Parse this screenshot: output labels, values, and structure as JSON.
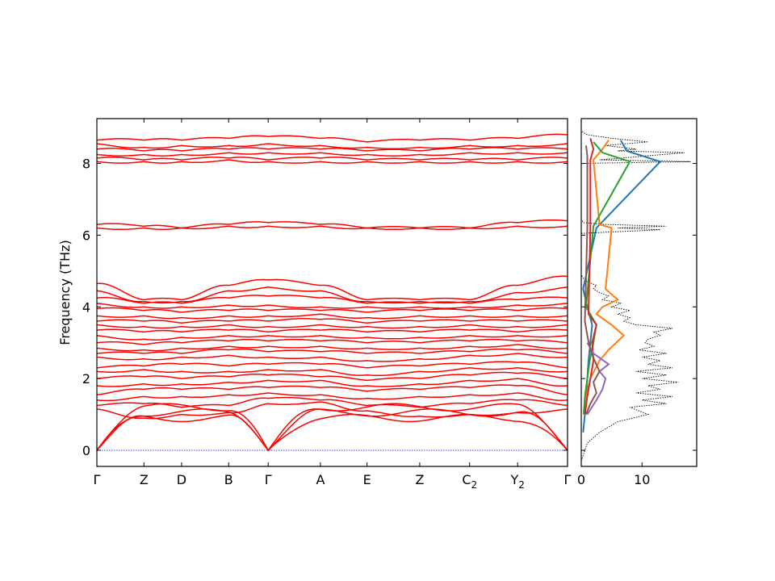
{
  "chart_data": [
    {
      "type": "line",
      "name": "band-structure",
      "ylabel": "Frequency (THz)",
      "ylim": [
        -0.45,
        9.25
      ],
      "y_ticks": [
        "0",
        "2",
        "4",
        "6",
        "8"
      ],
      "path_labels": [
        {
          "base": "Γ",
          "sub": ""
        },
        {
          "base": "Z",
          "sub": ""
        },
        {
          "base": "D",
          "sub": ""
        },
        {
          "base": "B",
          "sub": ""
        },
        {
          "base": "Γ",
          "sub": ""
        },
        {
          "base": "A",
          "sub": ""
        },
        {
          "base": "E",
          "sub": ""
        },
        {
          "base": "Z",
          "sub": ""
        },
        {
          "base": "C",
          "sub": "2"
        },
        {
          "base": "Y",
          "sub": "2"
        },
        {
          "base": "Γ",
          "sub": ""
        }
      ],
      "path_positions": [
        0,
        0.1,
        0.18,
        0.28,
        0.364,
        0.475,
        0.574,
        0.686,
        0.792,
        0.894,
        1.0
      ],
      "band_color": "#ff0000",
      "zero_line_color": "#0000ff",
      "acoustic_branches": 3,
      "optical_bands_at_nodes": [
        [
          1.15,
          0.9,
          1.0,
          1.05,
          1.3,
          1.35,
          1.1,
          0.95,
          1.0,
          1.05,
          1.15
        ],
        [
          1.25,
          1.3,
          1.2,
          1.25,
          1.45,
          1.4,
          1.25,
          1.2,
          1.3,
          1.4,
          1.25
        ],
        [
          1.4,
          1.5,
          1.5,
          1.55,
          1.6,
          1.55,
          1.45,
          1.5,
          1.55,
          1.6,
          1.4
        ],
        [
          1.55,
          1.7,
          1.7,
          1.7,
          1.75,
          1.75,
          1.65,
          1.7,
          1.75,
          1.8,
          1.55
        ],
        [
          1.8,
          1.85,
          1.85,
          1.9,
          1.95,
          1.95,
          1.8,
          1.85,
          1.95,
          2.0,
          1.8
        ],
        [
          2.0,
          2.05,
          2.0,
          2.05,
          2.1,
          2.05,
          1.95,
          2.0,
          2.1,
          2.15,
          2.0
        ],
        [
          2.2,
          2.25,
          2.2,
          2.2,
          2.25,
          2.25,
          2.1,
          2.2,
          2.3,
          2.3,
          2.2
        ],
        [
          2.3,
          2.35,
          2.4,
          2.35,
          2.4,
          2.4,
          2.3,
          2.35,
          2.4,
          2.45,
          2.3
        ],
        [
          2.6,
          2.55,
          2.6,
          2.65,
          2.6,
          2.6,
          2.5,
          2.55,
          2.65,
          2.7,
          2.6
        ],
        [
          2.7,
          2.7,
          2.7,
          2.8,
          2.75,
          2.75,
          2.7,
          2.7,
          2.75,
          2.8,
          2.7
        ],
        [
          2.85,
          2.8,
          2.85,
          2.9,
          2.9,
          2.9,
          2.85,
          2.85,
          2.9,
          2.95,
          2.85
        ],
        [
          3.0,
          2.95,
          3.0,
          3.05,
          3.05,
          3.05,
          3.0,
          3.0,
          3.05,
          3.05,
          3.0
        ],
        [
          3.2,
          3.1,
          3.15,
          3.2,
          3.2,
          3.2,
          3.15,
          3.15,
          3.2,
          3.2,
          3.2
        ],
        [
          3.35,
          3.3,
          3.3,
          3.35,
          3.3,
          3.35,
          3.3,
          3.3,
          3.35,
          3.3,
          3.35
        ],
        [
          3.5,
          3.45,
          3.45,
          3.5,
          3.45,
          3.5,
          3.45,
          3.45,
          3.5,
          3.45,
          3.5
        ],
        [
          3.6,
          3.6,
          3.55,
          3.6,
          3.6,
          3.65,
          3.55,
          3.6,
          3.6,
          3.6,
          3.6
        ],
        [
          3.75,
          3.75,
          3.7,
          3.75,
          3.75,
          3.8,
          3.7,
          3.75,
          3.75,
          3.75,
          3.75
        ],
        [
          3.95,
          3.9,
          3.85,
          3.9,
          3.9,
          3.9,
          3.85,
          3.9,
          3.9,
          3.9,
          3.95
        ],
        [
          4.1,
          4.0,
          4.0,
          4.05,
          4.05,
          4.0,
          4.0,
          4.0,
          4.0,
          4.05,
          4.1
        ],
        [
          4.25,
          4.1,
          4.1,
          4.25,
          4.3,
          4.25,
          4.1,
          4.1,
          4.1,
          4.2,
          4.25
        ],
        [
          4.45,
          4.15,
          4.15,
          4.45,
          4.55,
          4.45,
          4.15,
          4.15,
          4.15,
          4.4,
          4.55
        ],
        [
          4.65,
          4.2,
          4.2,
          4.6,
          4.75,
          4.6,
          4.2,
          4.2,
          4.2,
          4.6,
          4.85
        ],
        [
          6.2,
          6.2,
          6.2,
          6.25,
          6.25,
          6.25,
          6.2,
          6.2,
          6.2,
          6.25,
          6.25
        ],
        [
          6.3,
          6.25,
          6.2,
          6.3,
          6.35,
          6.3,
          6.2,
          6.2,
          6.2,
          6.35,
          6.4
        ],
        [
          8.05,
          8.05,
          8.05,
          8.1,
          8.05,
          8.05,
          8.05,
          8.05,
          8.05,
          8.05,
          8.05
        ],
        [
          8.15,
          8.1,
          8.1,
          8.15,
          8.1,
          8.15,
          8.1,
          8.1,
          8.1,
          8.1,
          8.15
        ],
        [
          8.25,
          8.25,
          8.25,
          8.3,
          8.3,
          8.3,
          8.25,
          8.25,
          8.3,
          8.3,
          8.3
        ],
        [
          8.4,
          8.35,
          8.35,
          8.4,
          8.4,
          8.4,
          8.35,
          8.35,
          8.4,
          8.4,
          8.4
        ],
        [
          8.55,
          8.45,
          8.5,
          8.5,
          8.55,
          8.5,
          8.45,
          8.45,
          8.5,
          8.5,
          8.55
        ],
        [
          8.65,
          8.65,
          8.65,
          8.7,
          8.75,
          8.7,
          8.6,
          8.65,
          8.65,
          8.7,
          8.8
        ]
      ]
    },
    {
      "type": "line",
      "name": "density-of-states",
      "xlim": [
        0,
        19
      ],
      "x_ticks": [
        "0",
        "10"
      ],
      "ylim": [
        -0.45,
        9.25
      ],
      "total_dos_color": "#000000",
      "total_dos": {
        "y": [
          -0.3,
          0.2,
          0.5,
          0.8,
          1.0,
          1.2,
          1.3,
          1.4,
          1.5,
          1.6,
          1.7,
          1.8,
          1.9,
          2.0,
          2.1,
          2.2,
          2.3,
          2.4,
          2.5,
          2.6,
          2.7,
          2.8,
          2.9,
          3.0,
          3.1,
          3.2,
          3.3,
          3.4,
          3.5,
          3.6,
          3.7,
          3.8,
          3.9,
          4.0,
          4.1,
          4.2,
          4.3,
          4.4,
          4.5,
          4.6,
          4.7,
          4.8,
          4.9,
          5.5,
          6.05,
          6.15,
          6.2,
          6.25,
          6.3,
          6.35,
          6.45,
          7.5,
          8.0,
          8.05,
          8.1,
          8.2,
          8.3,
          8.35,
          8.4,
          8.5,
          8.6,
          8.7,
          8.8,
          8.9
        ],
        "dos": [
          0,
          1.0,
          3.0,
          6.0,
          11.0,
          8.0,
          14.0,
          10.0,
          15.0,
          9.0,
          13.0,
          11.0,
          16.0,
          10.0,
          14.0,
          9.0,
          15.0,
          11.0,
          13.0,
          10.0,
          14.0,
          9.5,
          12.0,
          10.5,
          11.0,
          13.0,
          12.0,
          15.0,
          9.0,
          7.0,
          8.0,
          6.0,
          8.0,
          5.0,
          6.5,
          3.5,
          4.5,
          3.0,
          2.0,
          2.5,
          1.0,
          0.3,
          0,
          0,
          0,
          13.0,
          6.0,
          14.0,
          4.0,
          0.3,
          0,
          0,
          0,
          18.0,
          3.0,
          10.0,
          17.0,
          6.0,
          9.0,
          4.0,
          11.0,
          5.0,
          1.0,
          0
        ]
      },
      "projected_series": [
        {
          "color": "#1f77b4",
          "y": [
            0.5,
            1.0,
            1.5,
            2.0,
            2.5,
            3.0,
            3.5,
            4.0,
            4.5,
            6.2,
            8.05,
            8.35,
            8.65
          ],
          "dos": [
            0.3,
            0.6,
            0.8,
            1.0,
            1.2,
            1.5,
            1.8,
            1.0,
            0.3,
            2.5,
            13.0,
            7.5,
            6.5
          ]
        },
        {
          "color": "#ff7f0e",
          "y": [
            1.0,
            1.5,
            2.0,
            2.5,
            2.8,
            3.2,
            3.5,
            3.8,
            4.0,
            4.2,
            4.5,
            6.2,
            6.3,
            8.1,
            8.4,
            8.65
          ],
          "dos": [
            0.5,
            0.8,
            1.5,
            3.0,
            4.5,
            7.0,
            5.0,
            2.5,
            3.5,
            6.0,
            4.0,
            5.0,
            3.0,
            2.0,
            3.5,
            4.5
          ]
        },
        {
          "color": "#2ca02c",
          "y": [
            1.0,
            1.5,
            2.0,
            2.5,
            3.0,
            3.5,
            4.0,
            6.25,
            8.05,
            8.3,
            8.6
          ],
          "dos": [
            0.4,
            0.6,
            1.0,
            1.4,
            2.0,
            2.5,
            0.8,
            2.0,
            8.0,
            3.5,
            2.0
          ]
        },
        {
          "color": "#d62728",
          "y": [
            1.0,
            1.5,
            2.0,
            2.5,
            3.0,
            3.5,
            3.8,
            6.2,
            8.1,
            8.4,
            8.7
          ],
          "dos": [
            0.6,
            1.0,
            1.5,
            2.0,
            1.8,
            2.5,
            1.2,
            1.5,
            1.5,
            2.0,
            1.5
          ]
        },
        {
          "color": "#9467bd",
          "y": [
            1.0,
            1.4,
            1.7,
            2.0,
            2.2,
            2.4,
            2.7,
            3.0
          ],
          "dos": [
            1.0,
            2.5,
            3.5,
            4.0,
            3.0,
            4.5,
            2.0,
            1.0
          ]
        },
        {
          "color": "#8c564b",
          "y": [
            1.0,
            1.3,
            1.6,
            1.9,
            2.2,
            2.5,
            2.8,
            3.2,
            3.6,
            6.2,
            8.2,
            8.5
          ],
          "dos": [
            0.8,
            1.5,
            2.5,
            2.0,
            3.0,
            2.2,
            1.5,
            1.0,
            0.6,
            1.0,
            1.0,
            0.8
          ]
        }
      ]
    }
  ]
}
